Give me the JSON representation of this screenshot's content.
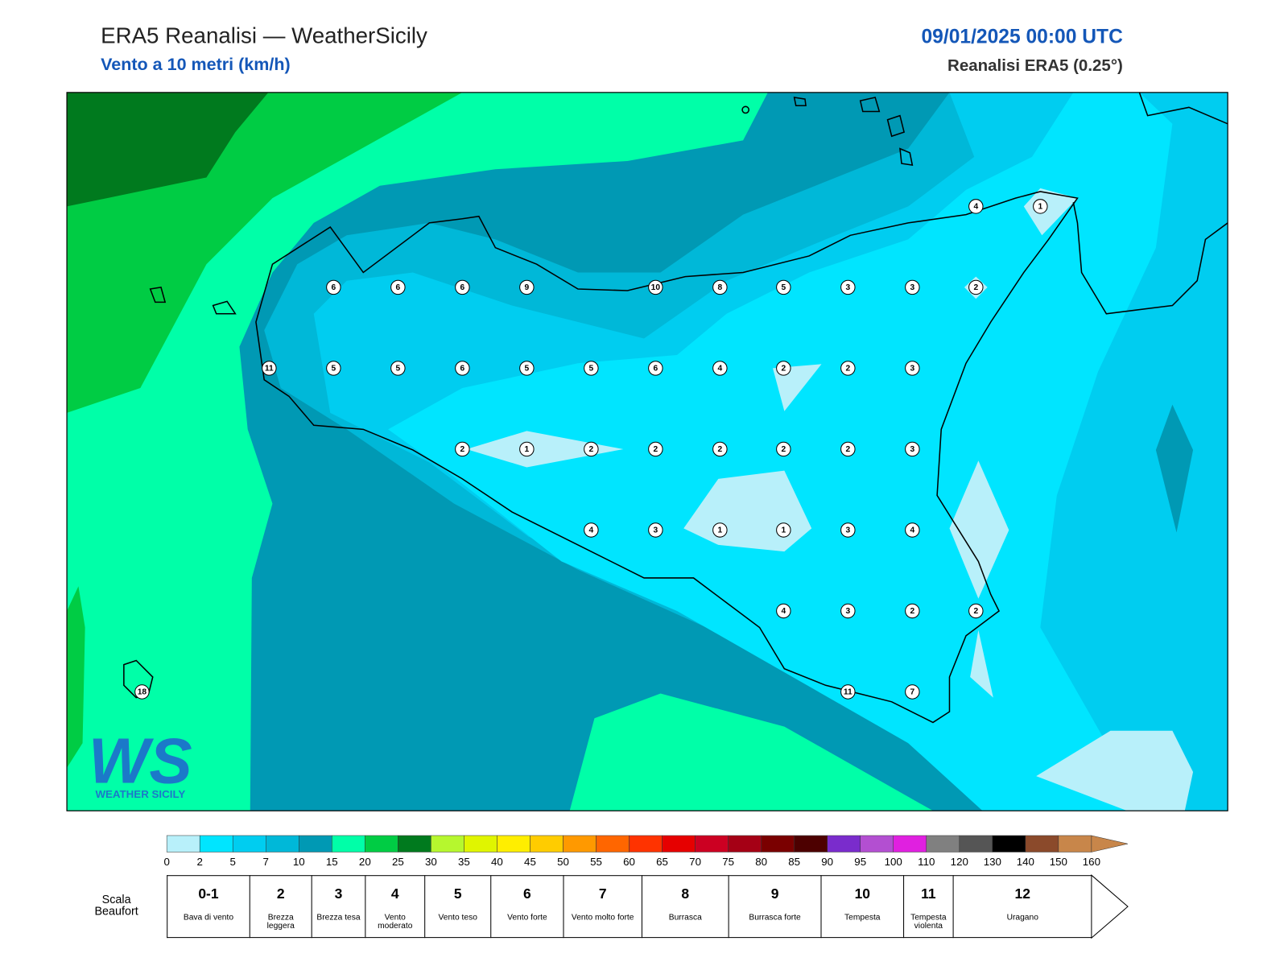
{
  "header": {
    "title": "ERA5 Reanalisi — WeatherSicily",
    "subtitle": "Vento a 10 metri (km/h)",
    "datetime": "09/01/2025 00:00 UTC",
    "source": "Reanalisi ERA5 (0.25°)"
  },
  "map": {
    "stations": [
      6,
      6,
      6,
      9,
      10,
      8,
      5,
      3,
      3,
      2,
      11,
      5,
      5,
      6,
      5,
      5,
      6,
      4,
      2,
      2,
      3,
      2,
      1,
      2,
      2,
      2,
      2,
      2,
      3,
      4,
      3,
      1,
      1,
      3,
      4,
      4,
      3,
      2,
      2,
      18,
      11,
      7,
      4,
      1
    ]
  },
  "colorbar": {
    "colors": [
      "#b8f0fa",
      "#00e5ff",
      "#00cdf0",
      "#00b8d8",
      "#0099b4",
      "#00ffa8",
      "#00cc44",
      "#007a1e",
      "#b6f72e",
      "#e0f500",
      "#ffee00",
      "#ffcc00",
      "#ff9900",
      "#ff6600",
      "#ff3300",
      "#e60000",
      "#cc0022",
      "#a50015",
      "#7a0000",
      "#4d0000",
      "#7a2ccc",
      "#b34fd1",
      "#e020e0",
      "#808080",
      "#555555",
      "#000000",
      "#8b4a2b",
      "#c8864a"
    ],
    "ticks": [
      0,
      2,
      5,
      7,
      10,
      15,
      20,
      25,
      30,
      35,
      40,
      45,
      50,
      55,
      60,
      65,
      70,
      75,
      80,
      85,
      90,
      95,
      100,
      110,
      120,
      130,
      140,
      150,
      160
    ]
  },
  "beaufort": {
    "label": "Scala Beaufort",
    "levels": [
      {
        "force": "0-1",
        "description": "Bava di vento"
      },
      {
        "force": "2",
        "description": "Brezza leggera"
      },
      {
        "force": "3",
        "description": "Brezza tesa"
      },
      {
        "force": "4",
        "description": "Vento moderato"
      },
      {
        "force": "5",
        "description": "Vento teso"
      },
      {
        "force": "6",
        "description": "Vento forte"
      },
      {
        "force": "7",
        "description": "Vento molto forte"
      },
      {
        "force": "8",
        "description": "Burrasca"
      },
      {
        "force": "9",
        "description": "Burrasca forte"
      },
      {
        "force": "10",
        "description": "Tempesta"
      },
      {
        "force": "11",
        "description": "Tempesta violenta"
      },
      {
        "force": "12",
        "description": "Uragano"
      }
    ]
  },
  "logo": {
    "mark": "WS",
    "text": "WEATHER SICILY"
  }
}
